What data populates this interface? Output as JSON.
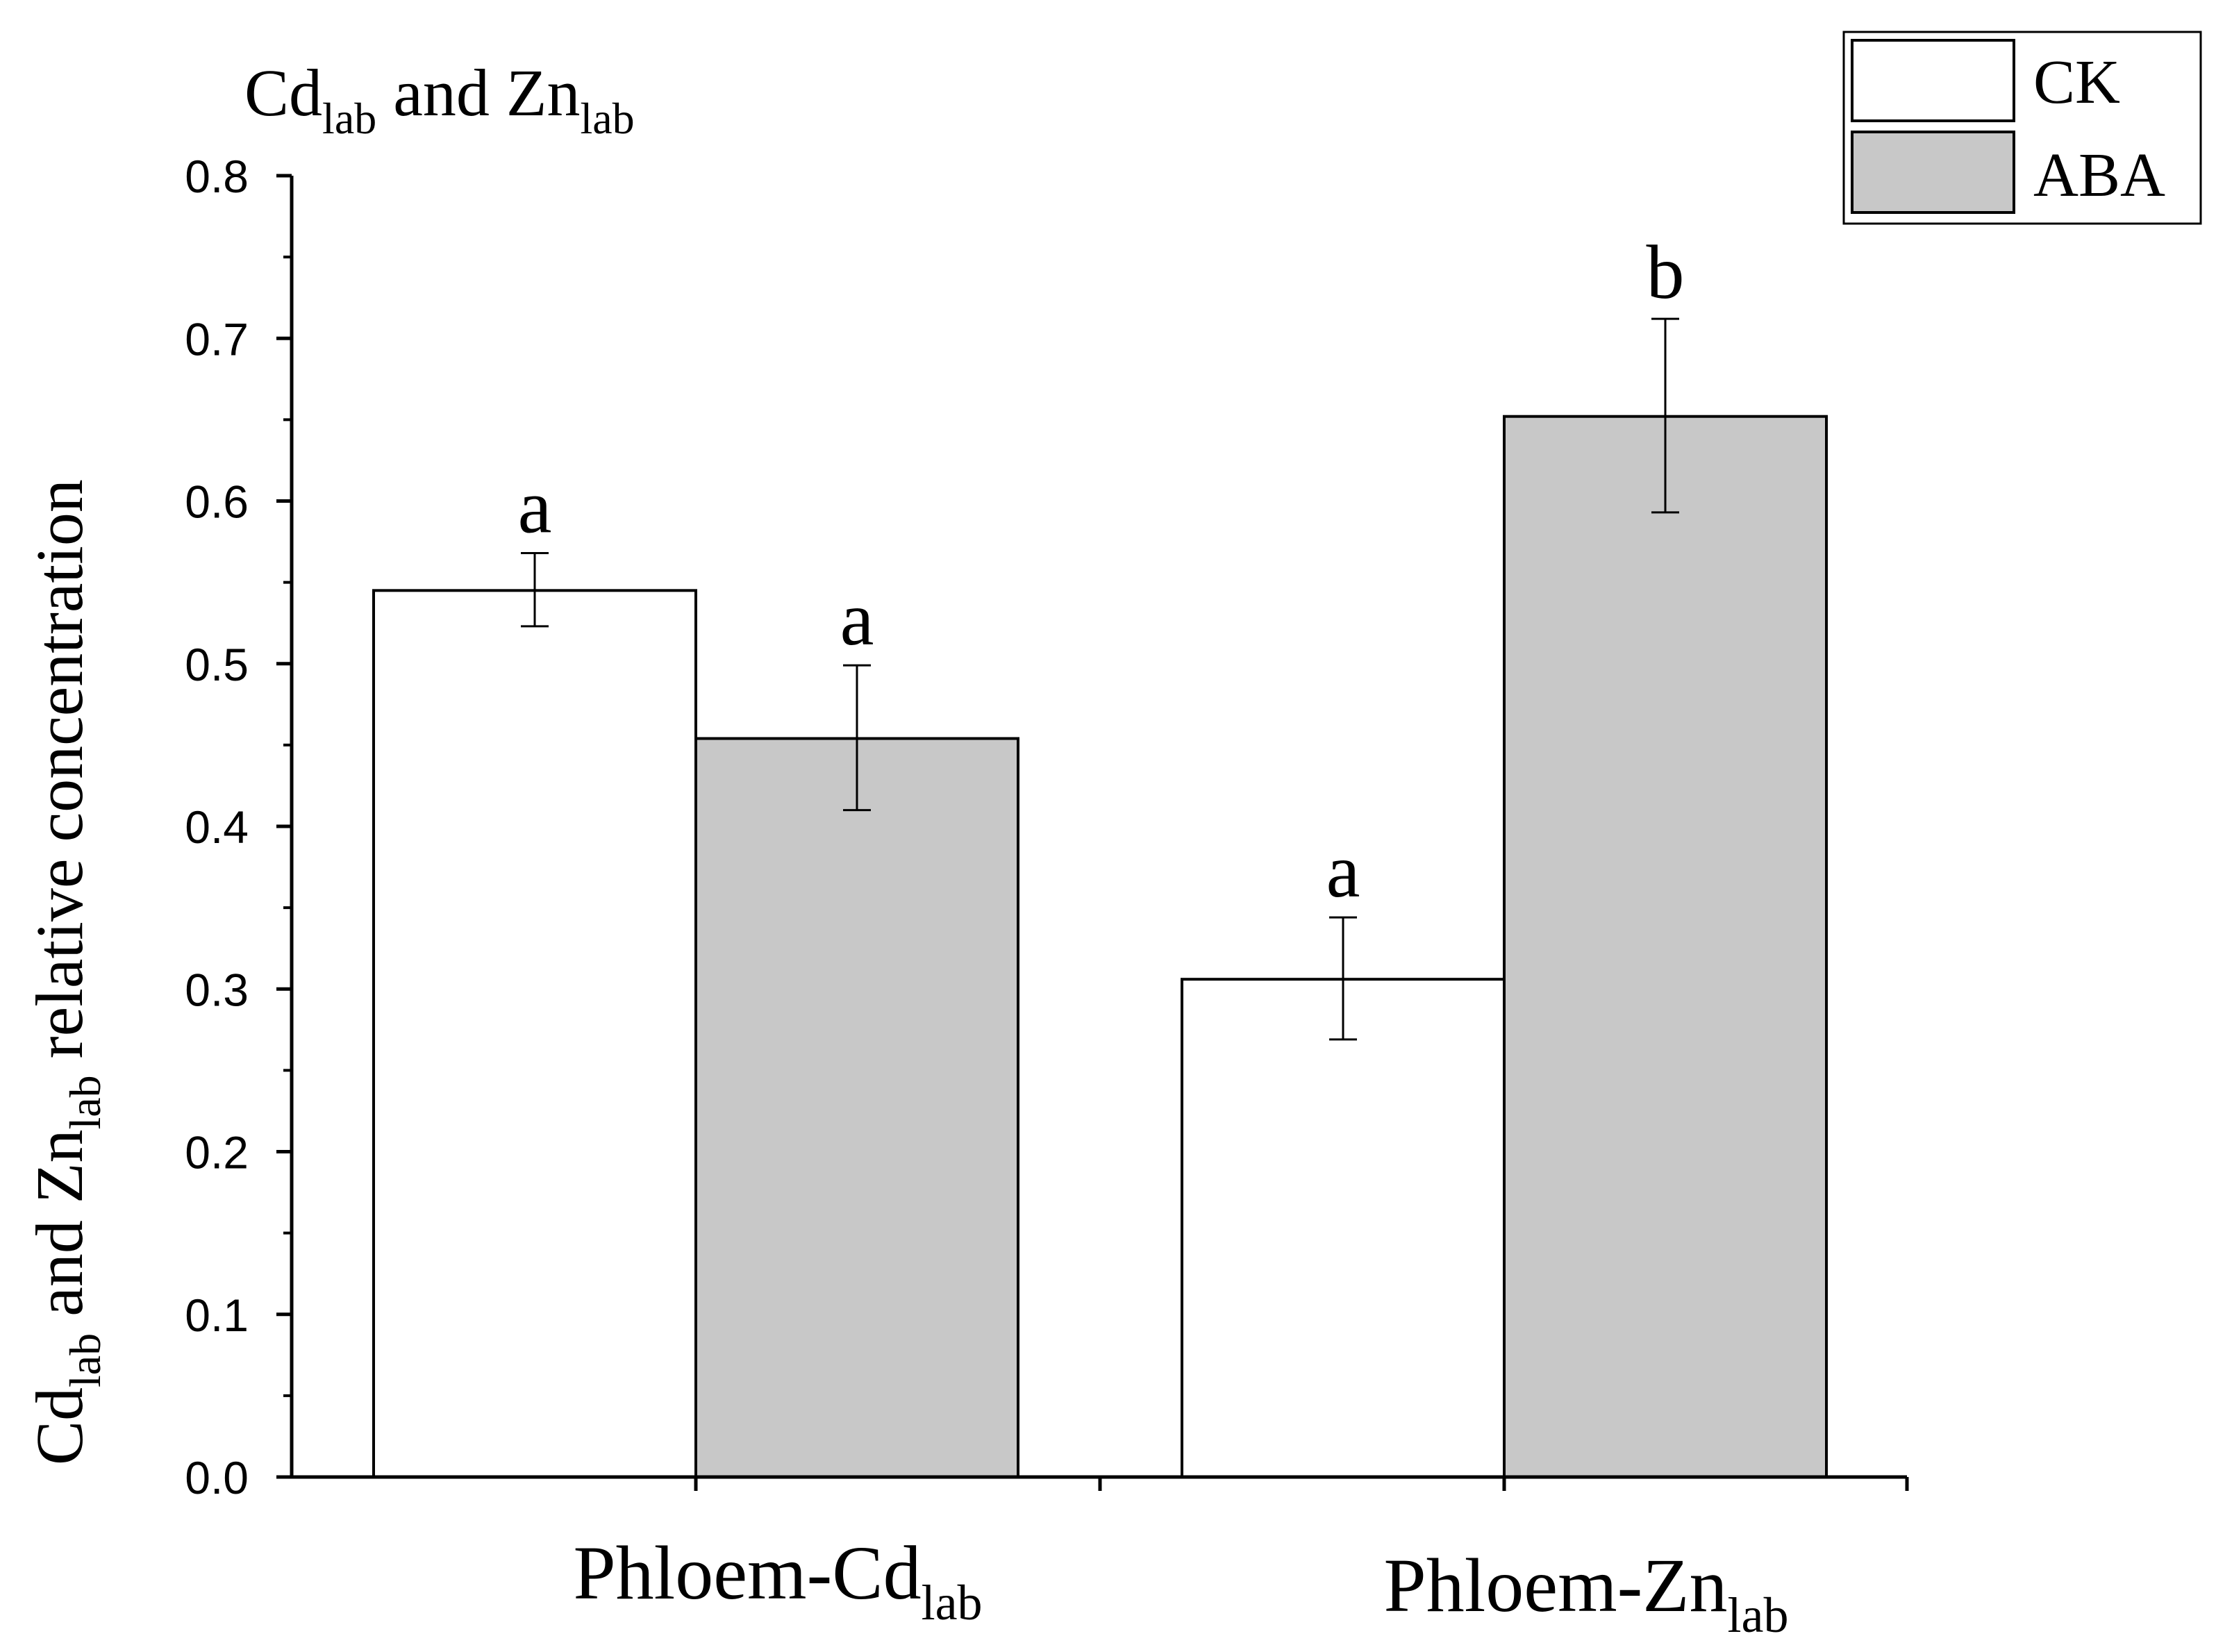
{
  "chart_data": {
    "type": "bar",
    "title_main": "Cd",
    "title_sub": "lab",
    "title_mid": " and Zn",
    "title_sub2": "lab",
    "ylabel_main": "Cd",
    "ylabel_sub": "lab",
    "ylabel_mid": " and Zn",
    "ylabel_sub2": "lab",
    "ylabel_tail": "  relative concentration",
    "ylim": [
      0.0,
      0.8
    ],
    "yticks": [
      "0.0",
      "0.1",
      "0.2",
      "0.3",
      "0.4",
      "0.5",
      "0.6",
      "0.7",
      "0.8"
    ],
    "categories": [
      {
        "main": "Phloem-Cd",
        "sub": "lab"
      },
      {
        "main": "Phloem-Zn",
        "sub": "lab"
      }
    ],
    "series": [
      {
        "name": "CK",
        "color": "#ffffff",
        "values": [
          0.545,
          0.306
        ],
        "err_low": [
          0.523,
          0.269
        ],
        "err_high": [
          0.568,
          0.344
        ],
        "letters": [
          "a",
          "a"
        ]
      },
      {
        "name": "ABA",
        "color": "#c8c8c8",
        "values": [
          0.454,
          0.652
        ],
        "err_low": [
          0.41,
          0.593
        ],
        "err_high": [
          0.499,
          0.712
        ],
        "letters": [
          "a",
          "b"
        ]
      }
    ],
    "legend_position": "top-right"
  }
}
